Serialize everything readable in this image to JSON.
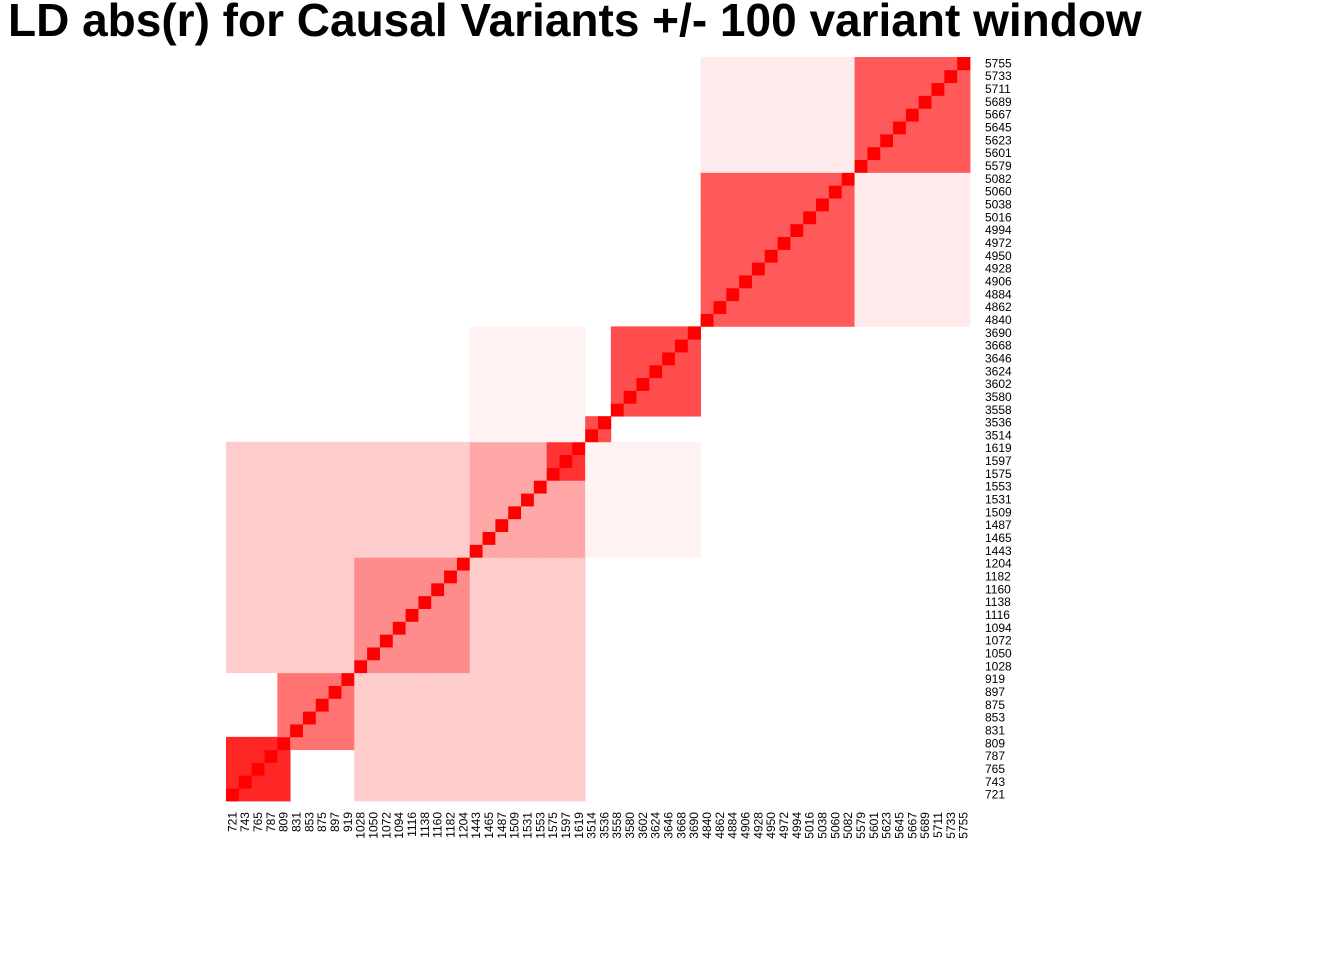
{
  "chart_data": {
    "type": "heatmap",
    "title": "LD abs(r) for Causal Variants +/- 100 variant window",
    "xlabel": "",
    "ylabel": "",
    "value_range": [
      0,
      1
    ],
    "color_low": "#ffffff",
    "color_high": "#ff0000",
    "grid": false,
    "legend": "none",
    "y_axis_position": "right",
    "x_tick_labels": [
      "721",
      "743",
      "765",
      "787",
      "809",
      "831",
      "853",
      "875",
      "897",
      "919",
      "1028",
      "1050",
      "1072",
      "1094",
      "1116",
      "1138",
      "1160",
      "1182",
      "1204",
      "1443",
      "1465",
      "1487",
      "1509",
      "1531",
      "1553",
      "1575",
      "1597",
      "1619",
      "3514",
      "3536",
      "3558",
      "3580",
      "3602",
      "3624",
      "3646",
      "3668",
      "3690",
      "4840",
      "4862",
      "4884",
      "4906",
      "4928",
      "4950",
      "4972",
      "4994",
      "5016",
      "5038",
      "5060",
      "5082",
      "5579",
      "5601",
      "5623",
      "5645",
      "5667",
      "5689",
      "5711",
      "5733",
      "5755"
    ],
    "y_tick_labels": [
      "721",
      "743",
      "765",
      "787",
      "809",
      "831",
      "853",
      "875",
      "897",
      "919",
      "1028",
      "1050",
      "1072",
      "1094",
      "1116",
      "1138",
      "1160",
      "1182",
      "1204",
      "1443",
      "1465",
      "1487",
      "1509",
      "1531",
      "1553",
      "1575",
      "1597",
      "1619",
      "3514",
      "3536",
      "3558",
      "3580",
      "3602",
      "3624",
      "3646",
      "3668",
      "3690",
      "4840",
      "4862",
      "4884",
      "4906",
      "4928",
      "4950",
      "4972",
      "4994",
      "5016",
      "5038",
      "5060",
      "5082",
      "5579",
      "5601",
      "5623",
      "5645",
      "5667",
      "5689",
      "5711",
      "5733",
      "5755"
    ],
    "cells_per_tick": 1,
    "ld_blocks": [
      {
        "from": "721",
        "to": "809",
        "mean_abs_r": 0.85
      },
      {
        "from": "809",
        "to": "919",
        "mean_abs_r": 0.55
      },
      {
        "from": "1028",
        "to": "1204",
        "mean_abs_r": 0.45
      },
      {
        "from": "1443",
        "to": "1619",
        "mean_abs_r": 0.35
      },
      {
        "from": "1575",
        "to": "1619",
        "mean_abs_r": 0.8
      },
      {
        "from": "3514",
        "to": "3536",
        "mean_abs_r": 0.7
      },
      {
        "from": "3558",
        "to": "3690",
        "mean_abs_r": 0.7
      },
      {
        "from": "4840",
        "to": "5082",
        "mean_abs_r": 0.65
      },
      {
        "from": "5579",
        "to": "5755",
        "mean_abs_r": 0.65
      }
    ],
    "cross_block_r": [
      {
        "a": "721-919",
        "b": "1028-1619",
        "mean_abs_r": 0.2
      },
      {
        "a": "1028-1204",
        "b": "1443-1619",
        "mean_abs_r": 0.2
      },
      {
        "a": "3514-3690",
        "b": "1443-1619",
        "mean_abs_r": 0.05
      },
      {
        "a": "4840-5082",
        "b": "5579-5755",
        "mean_abs_r": 0.08
      }
    ]
  }
}
